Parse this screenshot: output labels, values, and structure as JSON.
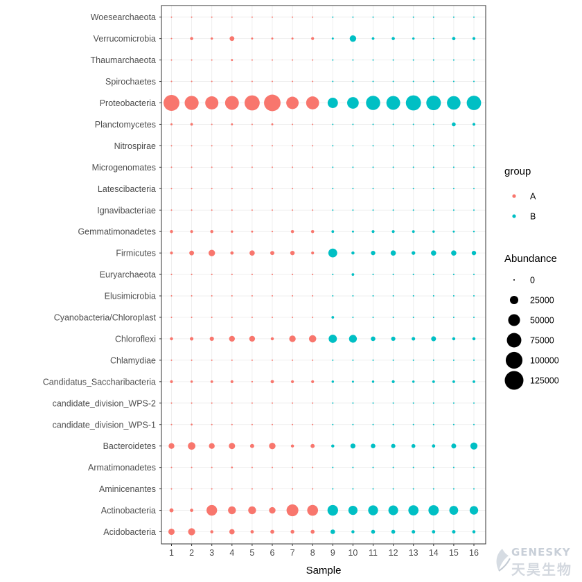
{
  "chart_data": {
    "type": "scatter",
    "title": "",
    "xlabel": "Sample",
    "ylabel": "",
    "x_categories": [
      "1",
      "2",
      "3",
      "4",
      "5",
      "6",
      "7",
      "8",
      "9",
      "10",
      "11",
      "12",
      "13",
      "14",
      "15",
      "16"
    ],
    "y_categories": [
      "Acidobacteria",
      "Actinobacteria",
      "Aminicenantes",
      "Armatimonadetes",
      "Bacteroidetes",
      "candidate_division_WPS-1",
      "candidate_division_WPS-2",
      "Candidatus_Saccharibacteria",
      "Chlamydiae",
      "Chloroflexi",
      "Cyanobacteria/Chloroplast",
      "Elusimicrobia",
      "Euryarchaeota",
      "Firmicutes",
      "Gemmatimonadetes",
      "Ignavibacteriae",
      "Latescibacteria",
      "Microgenomates",
      "Nitrospirae",
      "Planctomycetes",
      "Proteobacteria",
      "Spirochaetes",
      "Thaumarchaeota",
      "Verrucomicrobia",
      "Woesearchaeota"
    ],
    "group_by_sample": [
      "A",
      "A",
      "A",
      "A",
      "A",
      "A",
      "A",
      "A",
      "B",
      "B",
      "B",
      "B",
      "B",
      "B",
      "B",
      "B"
    ],
    "size_scale": {
      "domain_max": 125000,
      "breaks": [
        0,
        25000,
        50000,
        75000,
        100000,
        125000
      ]
    },
    "abundance": {
      "Acidobacteria": [
        14000,
        18000,
        3500,
        10000,
        4000,
        5500,
        5000,
        5500,
        7500,
        3500,
        5500,
        5500,
        4500,
        4000,
        4500,
        3500
      ],
      "Actinobacteria": [
        6000,
        4000,
        40000,
        22000,
        22000,
        15000,
        50000,
        42000,
        40000,
        30000,
        35000,
        34000,
        37000,
        38000,
        28000,
        26000
      ],
      "Aminicenantes": [
        200,
        200,
        200,
        200,
        200,
        200,
        200,
        200,
        200,
        200,
        200,
        200,
        200,
        200,
        200,
        200
      ],
      "Armatimonadetes": [
        300,
        700,
        300,
        1200,
        300,
        300,
        300,
        300,
        700,
        300,
        700,
        300,
        300,
        300,
        300,
        300
      ],
      "Bacteroidetes": [
        12000,
        20000,
        12000,
        14000,
        6000,
        15000,
        3500,
        6000,
        3500,
        9000,
        7500,
        6500,
        5500,
        4000,
        8500,
        18000
      ],
      "candidate_division_WPS-1": [
        300,
        1200,
        300,
        300,
        300,
        300,
        300,
        300,
        200,
        300,
        300,
        300,
        300,
        300,
        300,
        300
      ],
      "candidate_division_WPS-2": [
        200,
        200,
        200,
        200,
        200,
        200,
        200,
        200,
        200,
        200,
        200,
        200,
        200,
        200,
        200,
        200
      ],
      "Candidatus_Saccharibacteria": [
        3000,
        2000,
        2500,
        3000,
        900,
        4000,
        3000,
        3000,
        2000,
        1500,
        2000,
        3000,
        2000,
        2500,
        2500,
        2500
      ],
      "Chlamydiae": [
        200,
        200,
        200,
        200,
        200,
        200,
        200,
        200,
        200,
        200,
        200,
        200,
        200,
        200,
        200,
        200
      ],
      "Chloroflexi": [
        3500,
        4500,
        6500,
        12000,
        12000,
        3500,
        15000,
        19000,
        24000,
        22000,
        7500,
        6500,
        4500,
        8500,
        3500,
        3500
      ],
      "Cyanobacteria/Chloroplast": [
        200,
        200,
        200,
        200,
        200,
        200,
        200,
        200,
        2500,
        200,
        200,
        200,
        200,
        200,
        200,
        200
      ],
      "Elusimicrobia": [
        200,
        200,
        200,
        200,
        200,
        200,
        200,
        200,
        200,
        200,
        200,
        200,
        200,
        200,
        200,
        200
      ],
      "Euryarchaeota": [
        200,
        200,
        200,
        200,
        200,
        200,
        200,
        200,
        200,
        2500,
        200,
        200,
        200,
        200,
        200,
        200
      ],
      "Firmicutes": [
        3000,
        8000,
        15000,
        4000,
        10000,
        6000,
        7000,
        3000,
        28000,
        3500,
        7000,
        10000,
        5000,
        10000,
        10000,
        7000
      ],
      "Gemmatimonadetes": [
        3500,
        3000,
        3500,
        2000,
        1500,
        800,
        3500,
        3500,
        2500,
        1500,
        3000,
        3000,
        2500,
        2000,
        1500,
        1000
      ],
      "Ignavibacteriae": [
        200,
        200,
        200,
        200,
        200,
        200,
        200,
        200,
        200,
        200,
        200,
        200,
        200,
        200,
        200,
        200
      ],
      "Latescibacteria": [
        200,
        200,
        200,
        200,
        200,
        200,
        200,
        200,
        200,
        200,
        200,
        200,
        200,
        200,
        200,
        200
      ],
      "Microgenomates": [
        200,
        200,
        200,
        200,
        200,
        200,
        200,
        200,
        200,
        200,
        200,
        200,
        200,
        200,
        200,
        200
      ],
      "Nitrospirae": [
        200,
        200,
        200,
        200,
        200,
        200,
        200,
        200,
        200,
        200,
        200,
        200,
        200,
        200,
        200,
        200
      ],
      "Planctomycetes": [
        1500,
        2500,
        500,
        1500,
        400,
        1500,
        400,
        400,
        300,
        300,
        300,
        300,
        300,
        300,
        5500,
        3000
      ],
      "Proteobacteria": [
        90000,
        70000,
        62000,
        68000,
        82000,
        98000,
        55000,
        60000,
        38000,
        48000,
        72000,
        68000,
        82000,
        76000,
        66000,
        74000
      ],
      "Spirochaetes": [
        200,
        200,
        200,
        200,
        200,
        200,
        200,
        200,
        200,
        200,
        200,
        200,
        200,
        200,
        200,
        200
      ],
      "Thaumarchaeota": [
        200,
        200,
        200,
        1500,
        200,
        200,
        200,
        200,
        200,
        200,
        200,
        200,
        200,
        200,
        200,
        200
      ],
      "Verrucomicrobia": [
        400,
        3500,
        2000,
        8000,
        1500,
        1500,
        1500,
        3000,
        1500,
        15000,
        2500,
        3500,
        2000,
        500,
        4000,
        3000
      ],
      "Woesearchaeota": [
        200,
        200,
        200,
        200,
        200,
        200,
        200,
        200,
        300,
        200,
        200,
        200,
        200,
        200,
        200,
        200
      ]
    },
    "colors": {
      "A": "#F8766D",
      "B": "#00BFC4"
    },
    "grid": true,
    "legend": {
      "placement": "right",
      "group_title": "group",
      "group_entries": [
        "A",
        "B"
      ],
      "size_title": "Abundance",
      "size_entries": [
        "0",
        "25000",
        "50000",
        "75000",
        "100000",
        "125000"
      ]
    }
  },
  "watermark": {
    "text_en": "GENESKY",
    "text_cn": "天昊生物"
  }
}
